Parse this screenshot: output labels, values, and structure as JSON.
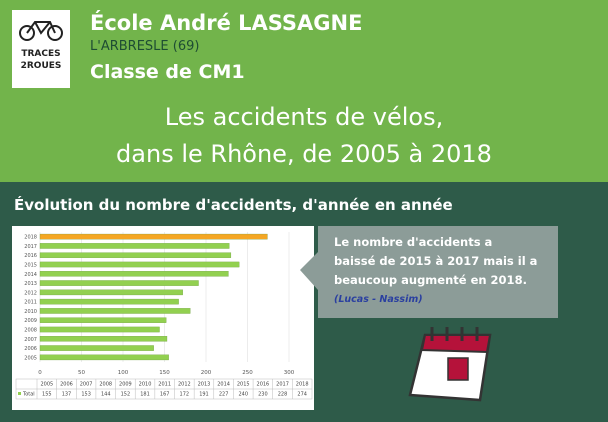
{
  "header": {
    "logo": [
      "TRACES",
      "2ROUES"
    ],
    "school": "École André LASSAGNE",
    "town": "L'ARBRESLE (69)",
    "class": "Classe de CM1",
    "headline": [
      "Les accidents de vélos,",
      "dans le Rhône, de 2005 à 2018"
    ]
  },
  "chart_data": {
    "type": "bar",
    "orientation": "horizontal",
    "title": "Évolution du nombre d'accidents, d'année en année",
    "categories": [
      "2005",
      "2006",
      "2007",
      "2008",
      "2009",
      "2010",
      "2011",
      "2012",
      "2013",
      "2014",
      "2015",
      "2016",
      "2017",
      "2018"
    ],
    "series": [
      {
        "name": "Total",
        "color": "#92d050",
        "colors": [
          "#92d050",
          "#92d050",
          "#92d050",
          "#92d050",
          "#92d050",
          "#92d050",
          "#92d050",
          "#92d050",
          "#92d050",
          "#92d050",
          "#92d050",
          "#92d050",
          "#92d050",
          "#f5a623"
        ],
        "values": [
          155,
          137,
          153,
          144,
          152,
          181,
          167,
          172,
          191,
          227,
          240,
          230,
          228,
          274
        ]
      }
    ],
    "xlim": [
      0,
      300
    ],
    "xticks": [
      0,
      50,
      100,
      150,
      200,
      250,
      300
    ],
    "grid": true
  },
  "callout": {
    "lines": [
      "Le nombre d'accidents a",
      "baissé de 2015 à 2017 mais il a",
      "beaucoup augmenté en 2018."
    ],
    "author": "(Lucas - Nassim)"
  }
}
